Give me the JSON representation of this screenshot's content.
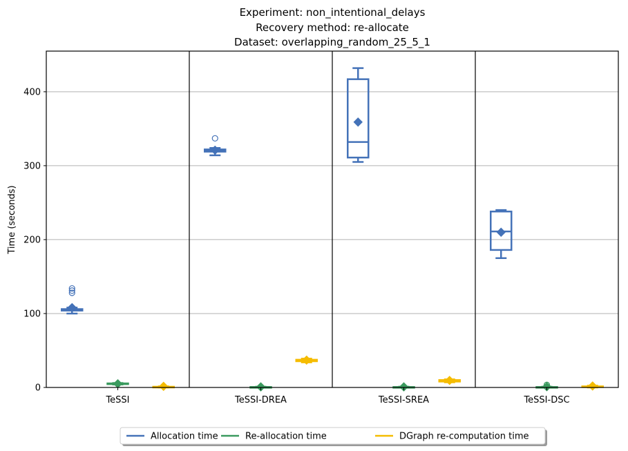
{
  "chart_data": {
    "type": "boxplot",
    "title_lines": [
      "Experiment: non_intentional_delays",
      "Recovery method: re-allocate",
      "Dataset: overlapping_random_25_5_1"
    ],
    "ylabel": "Time (seconds)",
    "ylim": [
      0,
      455
    ],
    "yticks": [
      0,
      100,
      200,
      300,
      400
    ],
    "grid": "horizontal",
    "legend_placement": "bottom-center",
    "categories": [
      "TeSSI",
      "TeSSI-DREA",
      "TeSSI-SREA",
      "TeSSI-DSC"
    ],
    "series": [
      {
        "name": "Allocation time",
        "color": "#4472b8",
        "boxes": [
          {
            "whislo": 100,
            "q1": 104,
            "med": 105,
            "q3": 106,
            "whishi": 108,
            "mean": 108,
            "fliers": [
              128,
              131,
              134
            ]
          },
          {
            "whislo": 314,
            "q1": 319,
            "med": 320,
            "q3": 322,
            "whishi": 324,
            "mean": 321,
            "fliers": [
              337
            ]
          },
          {
            "whislo": 305,
            "q1": 311,
            "med": 332,
            "q3": 417,
            "whishi": 432,
            "mean": 359,
            "fliers": []
          },
          {
            "whislo": 175,
            "q1": 186,
            "med": 211,
            "q3": 238,
            "whishi": 240,
            "mean": 210,
            "fliers": []
          }
        ]
      },
      {
        "name": "Re-allocation time",
        "color": "#3a9a5e",
        "boxes": [
          {
            "whislo": 4,
            "q1": 4.5,
            "med": 5,
            "q3": 5.5,
            "whishi": 6,
            "mean": 5,
            "fliers": []
          },
          {
            "whislo": 0,
            "q1": 0,
            "med": 0.3,
            "q3": 0.6,
            "whishi": 1,
            "mean": 0.8,
            "fliers": []
          },
          {
            "whislo": 0,
            "q1": 0,
            "med": 0.3,
            "q3": 0.6,
            "whishi": 1,
            "mean": 0.8,
            "fliers": []
          },
          {
            "whislo": 0,
            "q1": 0,
            "med": 0.3,
            "q3": 0.6,
            "whishi": 1,
            "mean": 1,
            "fliers": [
              3.5
            ]
          }
        ]
      },
      {
        "name": "DGraph re-computation time",
        "color": "#f5bc00",
        "boxes": [
          {
            "whislo": 0,
            "q1": 0,
            "med": 0.5,
            "q3": 1,
            "whishi": 1.5,
            "mean": 1.5,
            "fliers": []
          },
          {
            "whislo": 34,
            "q1": 35.5,
            "med": 36.5,
            "q3": 37.5,
            "whishi": 39,
            "mean": 37,
            "fliers": []
          },
          {
            "whislo": 7,
            "q1": 8,
            "med": 9,
            "q3": 10,
            "whishi": 11,
            "mean": 9.5,
            "fliers": []
          },
          {
            "whislo": 0,
            "q1": 0.5,
            "med": 1,
            "q3": 1.5,
            "whishi": 2.5,
            "mean": 2,
            "fliers": []
          }
        ]
      }
    ]
  }
}
